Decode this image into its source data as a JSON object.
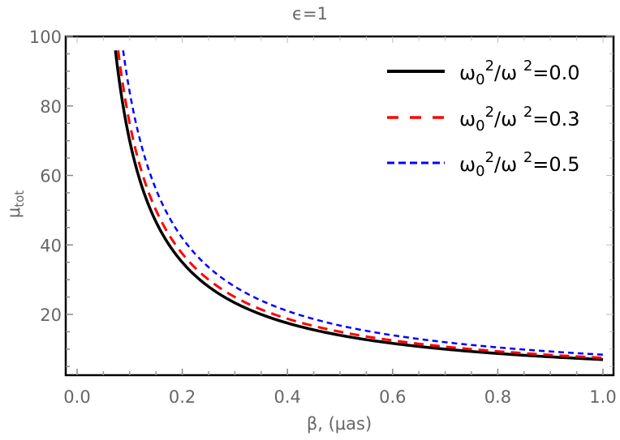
{
  "chart_data": {
    "type": "line",
    "title": "ϵ=1",
    "xlabel": "β, (μas)",
    "ylabel": "μtot",
    "xlim": [
      -0.02,
      1.02
    ],
    "ylim": [
      2,
      100
    ],
    "xticks": [
      "0.0",
      "0.2",
      "0.4",
      "0.6",
      "0.8",
      "1.0"
    ],
    "yticks": [
      "20",
      "40",
      "60",
      "80",
      "100"
    ],
    "grid": false,
    "legend_position": "upper right",
    "x": [
      0.073,
      0.1,
      0.15,
      0.2,
      0.3,
      0.4,
      0.5,
      0.6,
      0.7,
      0.8,
      0.9,
      1.0
    ],
    "series": [
      {
        "name": "ω0²/ω²=0.0",
        "color": "#000000",
        "style": "solid",
        "values": [
          96,
          70,
          46.7,
          35,
          23.3,
          17.5,
          14,
          11.7,
          10,
          8.8,
          7.8,
          7.0
        ]
      },
      {
        "name": "ω0²/ω²=0.3",
        "color": "#ff0000",
        "style": "dashed",
        "values": [
          null,
          75,
          50,
          37.5,
          25,
          18.8,
          15,
          12.5,
          10.7,
          9.4,
          8.3,
          7.5
        ]
      },
      {
        "name": "ω0²/ω²=0.5",
        "color": "#0000ff",
        "style": "dotted-dash",
        "values": [
          null,
          84,
          56,
          42,
          28,
          21,
          16.8,
          14,
          12,
          10.5,
          9.3,
          8.4
        ]
      }
    ]
  },
  "legend": [
    {
      "label": "ω₀²/ω²=0.0",
      "base": "ω",
      "sub": "0",
      "sup1": "2",
      "mid": "/ω ",
      "sup2": "2",
      "tail": "=0.0"
    },
    {
      "label": "ω₀²/ω²=0.3",
      "base": "ω",
      "sub": "0",
      "sup1": "2",
      "mid": "/ω ",
      "sup2": "2",
      "tail": "=0.3"
    },
    {
      "label": "ω₀²/ω²=0.5",
      "base": "ω",
      "sub": "0",
      "sup1": "2",
      "mid": "/ω ",
      "sup2": "2",
      "tail": "=0.5"
    }
  ],
  "labels": {
    "title": "ϵ=1",
    "xlabel": "β, (μas)",
    "ylabel_main": "μ",
    "ylabel_sub": "tot"
  }
}
